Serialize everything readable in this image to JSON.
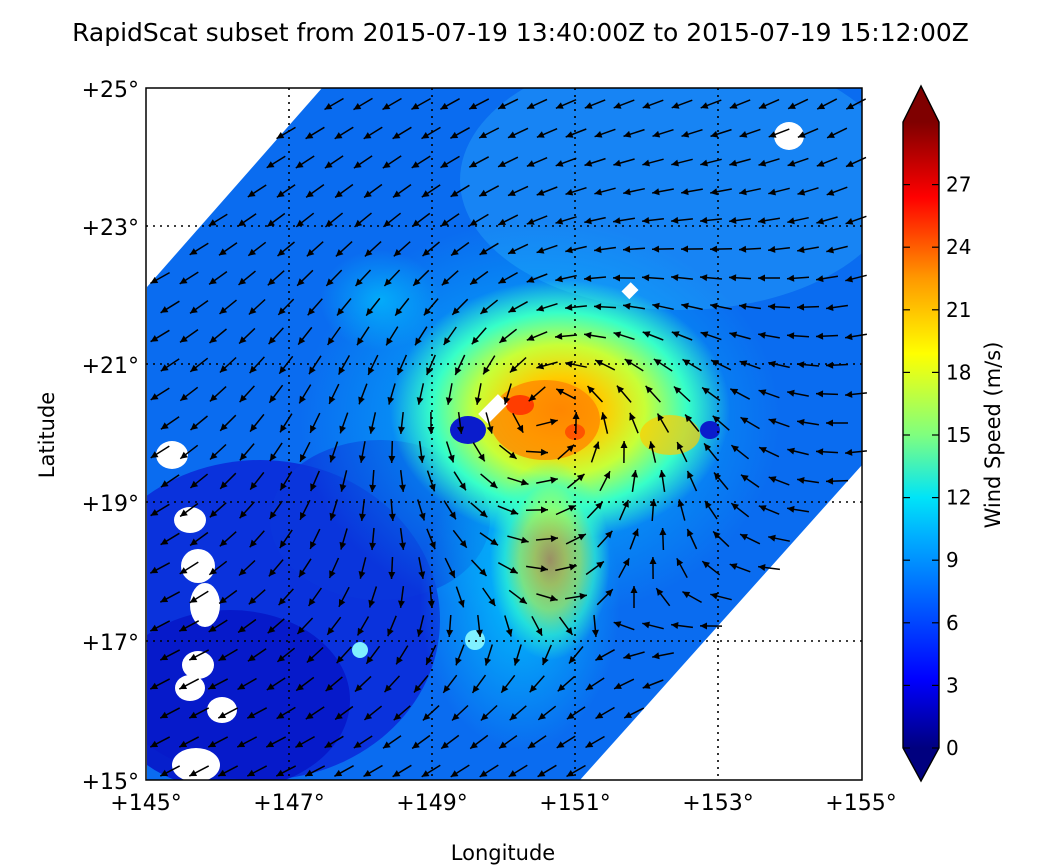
{
  "title": "RapidScat subset from 2015-07-19 13:40:00Z to 2015-07-19 15:12:00Z",
  "map": {
    "xlabel": "Longitude",
    "ylabel": "Latitude",
    "lon_range": [
      145,
      155
    ],
    "lat_range": [
      15,
      25
    ],
    "lon_ticks": [
      "+145°",
      "+147°",
      "+149°",
      "+151°",
      "+153°",
      "+155°"
    ],
    "lat_ticks": [
      "+15°",
      "+17°",
      "+19°",
      "+21°",
      "+23°",
      "+25°"
    ],
    "graticule": "dotted",
    "storm_center": {
      "lon": 150.6,
      "lat": 20.3
    }
  },
  "colorbar": {
    "label": "Wind Speed (m/s)",
    "ticks": [
      "0",
      "3",
      "6",
      "9",
      "12",
      "15",
      "18",
      "21",
      "24",
      "27"
    ],
    "range": [
      0,
      30
    ],
    "colormap": "jet",
    "colors": [
      "#00007f",
      "#0000ff",
      "#007fff",
      "#00ffff",
      "#7fff7f",
      "#ffff00",
      "#ff7f00",
      "#ff0000",
      "#7f0000"
    ]
  },
  "chart_data": {
    "type": "heatmap",
    "title": "RapidScat subset from 2015-07-19 13:40:00Z to 2015-07-19 15:12:00Z",
    "xlabel": "Longitude",
    "ylabel": "Latitude",
    "xlim": [
      145,
      155
    ],
    "ylim": [
      15,
      25
    ],
    "colorbar_label": "Wind Speed (m/s)",
    "colorbar_range": [
      0,
      30
    ],
    "features": [
      "wind-speed field",
      "wind-direction arrows",
      "swath edges",
      "rain-flag gaps"
    ],
    "max_wind_region": {
      "lon": 150.6,
      "lat": 20.3,
      "speed_approx": 24
    }
  }
}
